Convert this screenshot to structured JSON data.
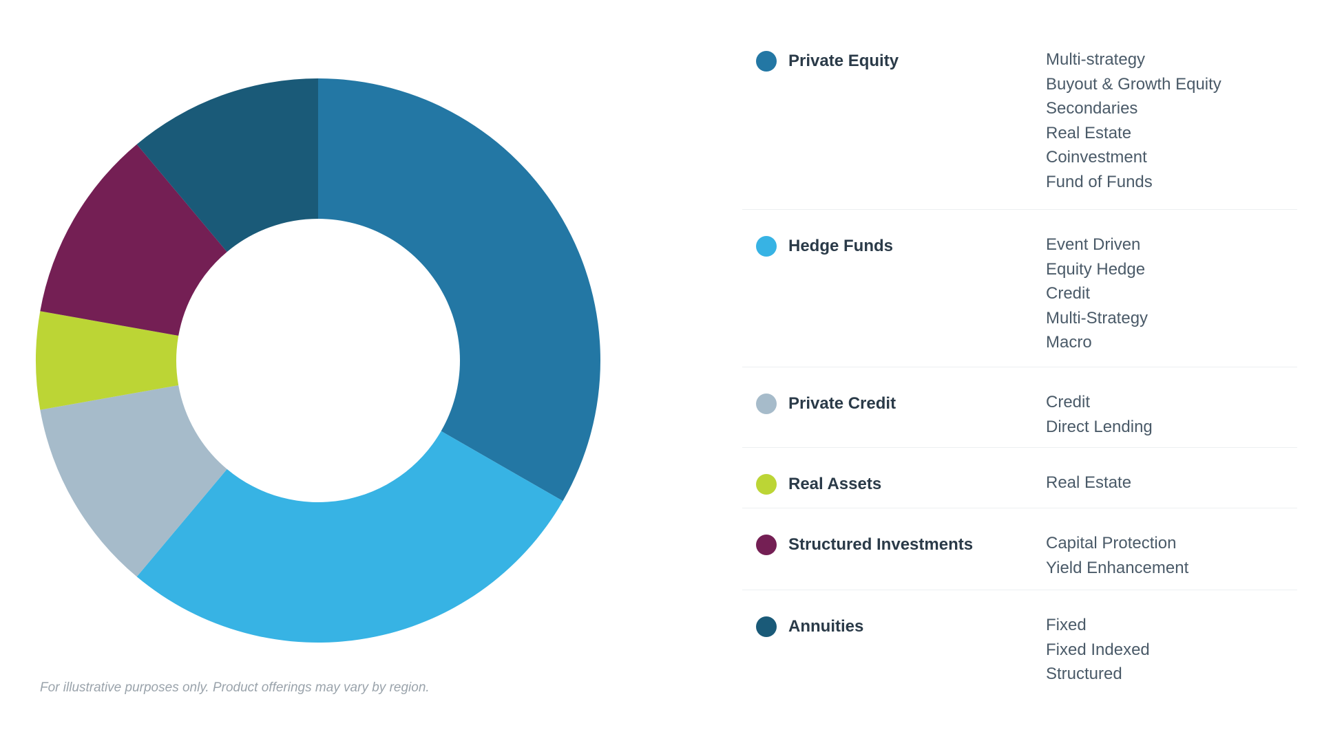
{
  "chart_data": {
    "type": "pie",
    "donut": true,
    "title": "",
    "categories": [
      "Private Equity",
      "Hedge Funds",
      "Private Credit",
      "Real Assets",
      "Structured Investments",
      "Annuities"
    ],
    "values": [
      33.3,
      27.8,
      11.1,
      5.6,
      11.1,
      11.1
    ],
    "colors": [
      "#2377a4",
      "#37b3e4",
      "#a6bbca",
      "#bcd535",
      "#741f54",
      "#1a5a78"
    ],
    "start_angle_deg": 0,
    "direction": "clockwise",
    "legend_position": "right"
  },
  "legend": [
    {
      "label": "Private Equity",
      "color": "#2377a4",
      "sub_items": [
        "Multi-strategy",
        "Buyout & Growth Equity",
        "Secondaries",
        "Real Estate",
        "Coinvestment",
        "Fund of Funds"
      ]
    },
    {
      "label": "Hedge Funds",
      "color": "#37b3e4",
      "sub_items": [
        "Event Driven",
        "Equity Hedge",
        "Credit",
        "Multi-Strategy",
        "Macro"
      ]
    },
    {
      "label": "Private Credit",
      "color": "#a6bbca",
      "sub_items": [
        "Credit",
        "Direct Lending"
      ]
    },
    {
      "label": "Real Assets",
      "color": "#bcd535",
      "sub_items": [
        "Real Estate"
      ]
    },
    {
      "label": "Structured Investments",
      "color": "#741f54",
      "sub_items": [
        "Capital Protection",
        "Yield Enhancement"
      ]
    },
    {
      "label": "Annuities",
      "color": "#1a5a78",
      "sub_items": [
        "Fixed",
        "Fixed Indexed",
        "Structured"
      ]
    }
  ],
  "footer": {
    "disclaimer": "For illustrative purposes only. Product offerings may vary by region."
  }
}
